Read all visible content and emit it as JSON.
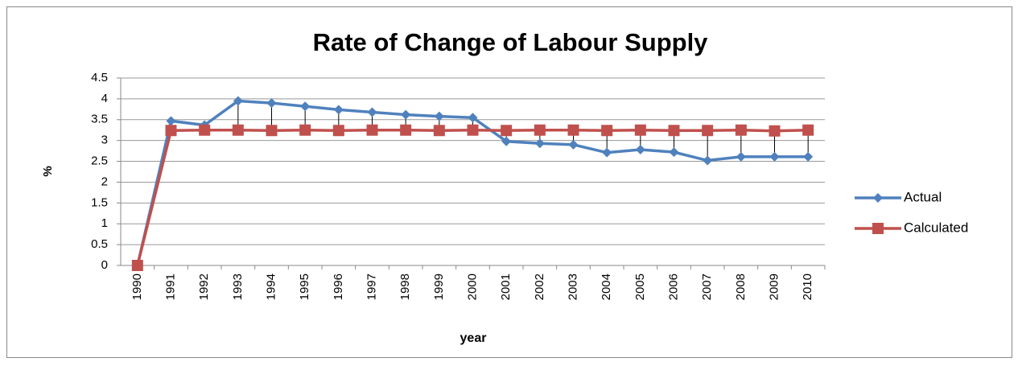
{
  "chart_data": {
    "type": "line",
    "title": "Rate of Change of Labour Supply",
    "x_label": "year",
    "y_label": "%",
    "categories": [
      "1990",
      "1991",
      "1992",
      "1993",
      "1994",
      "1995",
      "1996",
      "1997",
      "1998",
      "1999",
      "2000",
      "2001",
      "2002",
      "2003",
      "2004",
      "2005",
      "2006",
      "2007",
      "2008",
      "2009",
      "2010"
    ],
    "series": [
      {
        "name": "Actual",
        "color": "#4f81bd",
        "marker": "diamond",
        "values": [
          0,
          3.47,
          3.37,
          3.95,
          3.9,
          3.82,
          3.74,
          3.68,
          3.62,
          3.58,
          3.55,
          2.98,
          2.93,
          2.9,
          2.71,
          2.78,
          2.72,
          2.52,
          2.61,
          2.61,
          2.61
        ]
      },
      {
        "name": "Calculated",
        "color": "#c0504d",
        "marker": "square",
        "values": [
          0,
          3.24,
          3.25,
          3.25,
          3.24,
          3.25,
          3.24,
          3.25,
          3.25,
          3.24,
          3.25,
          3.24,
          3.25,
          3.25,
          3.24,
          3.25,
          3.24,
          3.24,
          3.25,
          3.23,
          3.25
        ]
      }
    ],
    "drop_lines": true,
    "ylim": [
      0,
      4.5
    ],
    "yticks": [
      0,
      0.5,
      1,
      1.5,
      2,
      2.5,
      3,
      3.5,
      4,
      4.5
    ],
    "grid": true,
    "legend": "right"
  }
}
